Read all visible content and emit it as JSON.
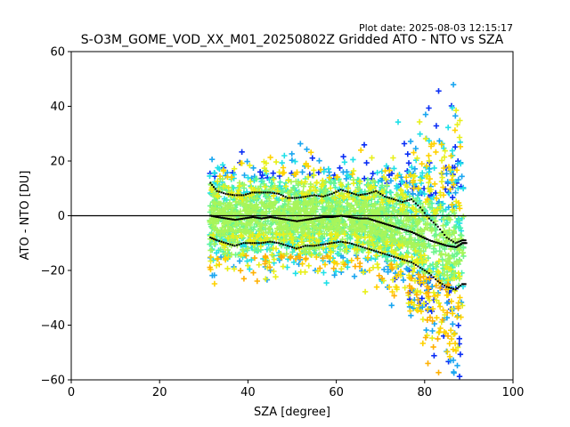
{
  "chart_data": {
    "type": "scatter",
    "title": "S-O3M_GOME_VOD_XX_M01_20250802Z Gridded ATO - NTO vs SZA",
    "plot_date": "Plot date: 2025-08-03 12:15:17",
    "xlabel": "SZA [degree]",
    "ylabel": "ATO - NTO [DU]",
    "xlim": [
      0,
      100
    ],
    "ylim": [
      -60,
      60
    ],
    "xticks": [
      "0",
      "20",
      "40",
      "60",
      "80",
      "100"
    ],
    "yticks": [
      "60",
      "40",
      "20",
      "0",
      "−20",
      "−40",
      "−60"
    ],
    "xtick_values": [
      0,
      20,
      40,
      60,
      80,
      100
    ],
    "ytick_values": [
      60,
      40,
      20,
      0,
      -20,
      -40,
      -60
    ],
    "zero_line": 0,
    "marker": "+",
    "color_ramp": [
      "#0a2ef5",
      "#1aa6f0",
      "#20e0e8",
      "#48f2b0",
      "#6ef58c",
      "#a8f55a",
      "#e8f01a",
      "#ffd200",
      "#ffb000"
    ],
    "median_line_color": "#000000",
    "grid": false,
    "series": [
      {
        "x": [
          31.5,
          33,
          35,
          37,
          39,
          41,
          43,
          45,
          47,
          49,
          51,
          53,
          55,
          57,
          59,
          61,
          63,
          65,
          67,
          69,
          71,
          73,
          75,
          77,
          79,
          81,
          83,
          85,
          87,
          88.5
        ],
        "y": [
          0,
          -0.5,
          -1,
          -1.5,
          -1,
          -0.5,
          -1,
          -0.5,
          -1,
          -1.5,
          -2,
          -1.5,
          -1,
          -0.5,
          -0.5,
          0,
          -0.5,
          -1,
          -1,
          -2,
          -3,
          -4,
          -5,
          -6,
          -7.5,
          -9,
          -10,
          -11,
          -11.5,
          -10
        ]
      },
      {
        "x": [
          31.5,
          33,
          35,
          37,
          39,
          41,
          43,
          45,
          47,
          49,
          51,
          53,
          55,
          57,
          59,
          61,
          63,
          65,
          67,
          69,
          71,
          73,
          75,
          77,
          79,
          81,
          83,
          85,
          87,
          88.5
        ],
        "y": [
          12,
          9,
          8,
          7.5,
          7.5,
          8.5,
          8.5,
          8.5,
          8,
          6.5,
          6.5,
          7,
          7.5,
          7,
          8,
          9.5,
          8.5,
          7.5,
          8,
          9,
          7,
          6,
          5,
          6,
          3,
          -1,
          -4,
          -8,
          -10,
          -9
        ]
      },
      {
        "x": [
          31.5,
          33,
          35,
          37,
          39,
          41,
          43,
          45,
          47,
          49,
          51,
          53,
          55,
          57,
          59,
          61,
          63,
          65,
          67,
          69,
          71,
          73,
          75,
          77,
          79,
          81,
          83,
          85,
          87,
          88.5
        ],
        "y": [
          -8,
          -9,
          -10,
          -11,
          -10,
          -10,
          -10,
          -9.5,
          -10,
          -11,
          -12,
          -11,
          -11,
          -10.5,
          -10,
          -9.5,
          -10,
          -11,
          -12,
          -13,
          -14,
          -15,
          -16,
          -17,
          -19,
          -21,
          -24,
          -26,
          -27,
          -25
        ]
      }
    ]
  }
}
